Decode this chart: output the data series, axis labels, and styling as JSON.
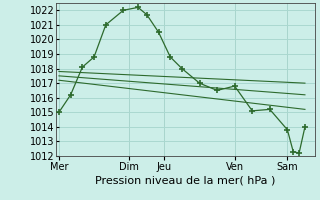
{
  "title": "Pression niveau de la mer( hPa )",
  "bg_color": "#cceee8",
  "grid_color": "#aad8d0",
  "line_color": "#2d6a2d",
  "marker_color": "#2d6a2d",
  "ylim": [
    1012,
    1022.5
  ],
  "yticks": [
    1012,
    1013,
    1014,
    1015,
    1016,
    1017,
    1018,
    1019,
    1020,
    1021,
    1022
  ],
  "series": [
    {
      "x": [
        0,
        8,
        16,
        24,
        32,
        44,
        54,
        60,
        68,
        76,
        84,
        96,
        108,
        120,
        132,
        144,
        156,
        160,
        164,
        168
      ],
      "y": [
        1015.0,
        1016.2,
        1018.1,
        1018.8,
        1021.0,
        1022.0,
        1022.2,
        1021.7,
        1020.5,
        1018.8,
        1018.0,
        1017.0,
        1016.5,
        1016.8,
        1015.1,
        1015.2,
        1013.8,
        1012.3,
        1012.2,
        1014.0
      ],
      "with_markers": true
    },
    {
      "x": [
        0,
        168
      ],
      "y": [
        1017.8,
        1017.0
      ],
      "with_markers": false
    },
    {
      "x": [
        0,
        168
      ],
      "y": [
        1017.5,
        1016.2
      ],
      "with_markers": false
    },
    {
      "x": [
        0,
        168
      ],
      "y": [
        1017.2,
        1015.2
      ],
      "with_markers": false
    }
  ],
  "vlines_x": [
    48,
    72,
    120,
    156
  ],
  "vline_color": "#888888",
  "xtick_positions": [
    0,
    48,
    72,
    120,
    156
  ],
  "xtick_labels": [
    "Mer",
    "Dim",
    "Jeu",
    "Ven",
    "Sam"
  ],
  "xlabel_fontsize": 8,
  "tick_fontsize": 7,
  "xlim": [
    -2,
    175
  ]
}
